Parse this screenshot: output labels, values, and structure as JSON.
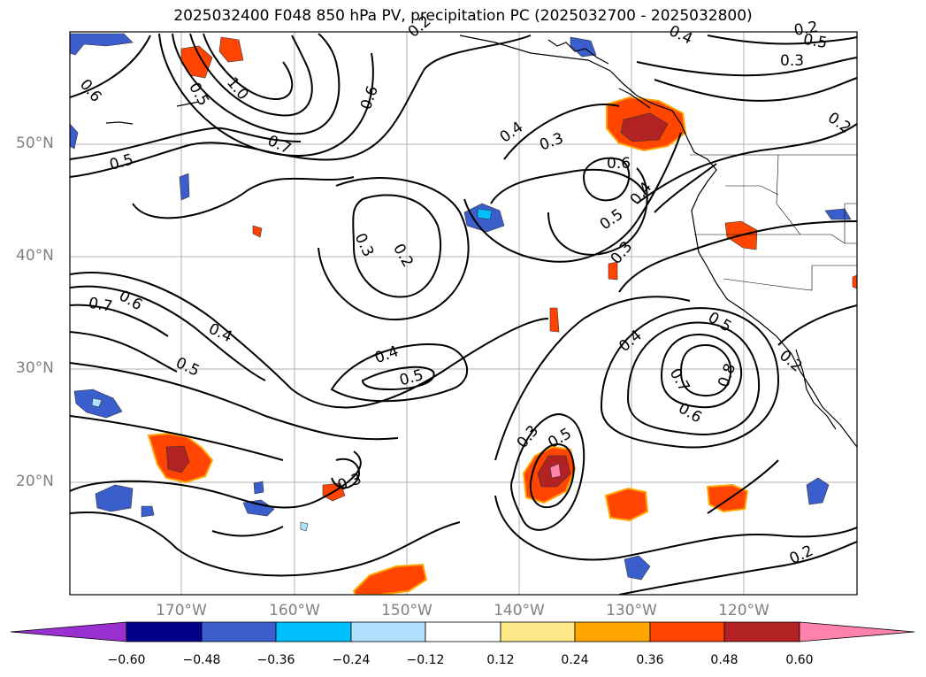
{
  "title": "2025032400 F048 850 hPa PV, precipitation PC (2025032700 - 2025032800)",
  "map": {
    "region": "North Pacific / US West Coast",
    "projection": "plate carree",
    "lon_range": [
      -180,
      -110
    ],
    "lat_range": [
      10,
      60
    ],
    "lat_ticks": [
      "50°N",
      "40°N",
      "30°N",
      "20°N"
    ],
    "lon_ticks": [
      "170°W",
      "160°W",
      "150°W",
      "140°W",
      "130°W",
      "120°W"
    ],
    "contour_field": "850 hPa PV",
    "contour_labels": [
      "0.6",
      "0.5",
      "1.0",
      "0.7",
      "0.5",
      "0.6",
      "0.4",
      "0.3",
      "0.6",
      "0.5",
      "0.4",
      "0.3",
      "0.2",
      "0.4",
      "0.5",
      "0.3",
      "0.2",
      "0.7",
      "0.6",
      "0.4",
      "0.5",
      "0.4",
      "0.5",
      "0.7",
      "0.8",
      "0.6",
      "0.2",
      "0.3",
      "0.5",
      "0.3",
      "0.2",
      "0.5",
      "0.4",
      "0.3",
      "0.2",
      "0.2"
    ],
    "shaded_field": "precipitation PC"
  },
  "colorbar": {
    "ticks": [
      "−0.60",
      "−0.48",
      "−0.36",
      "−0.24",
      "−0.12",
      "0.12",
      "0.24",
      "0.36",
      "0.48",
      "0.60"
    ],
    "colors": [
      "#9b30d0",
      "#00008b",
      "#3a5fcd",
      "#00bfff",
      "#b0e2ff",
      "#ffffff",
      "#ffe88a",
      "#ffa500",
      "#ff4500",
      "#b22222",
      "#ff82ab"
    ]
  }
}
